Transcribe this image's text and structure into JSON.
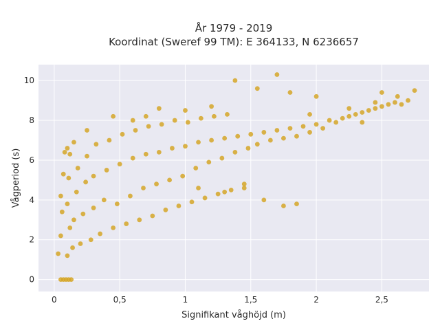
{
  "chart_data": {
    "type": "scatter",
    "title_line1": "År 1979 - 2019",
    "title_line2": "Koordinat (Sweref 99 TM): E 364133, N 6236657",
    "xlabel": "Signifikant våghöjd (m)",
    "ylabel": "Vågperiod (s)",
    "xlim": [
      -0.12,
      2.86
    ],
    "ylim": [
      -0.6,
      10.8
    ],
    "x_ticks": [
      0,
      0.5,
      1,
      1.5,
      2,
      2.5
    ],
    "x_tick_labels": [
      "0",
      "0,5",
      "1",
      "1,5",
      "2",
      "2,5"
    ],
    "y_ticks": [
      0,
      2,
      4,
      6,
      8,
      10
    ],
    "y_tick_labels": [
      "0",
      "2",
      "4",
      "6",
      "8",
      "10"
    ],
    "grid": true,
    "legend": "none",
    "colors": {
      "marker": "#d4a420",
      "plot_background": "#e9e9f2",
      "grid": "#ffffff"
    },
    "series": [
      {
        "points": [
          [
            0.05,
            0
          ],
          [
            0.07,
            0
          ],
          [
            0.09,
            0
          ],
          [
            0.11,
            0
          ],
          [
            0.13,
            0
          ],
          [
            0.03,
            1.3
          ],
          [
            0.05,
            2.2
          ],
          [
            0.06,
            3.4
          ],
          [
            0.05,
            4.2
          ],
          [
            0.07,
            5.3
          ],
          [
            0.08,
            6.4
          ],
          [
            0.1,
            1.2
          ],
          [
            0.12,
            2.6
          ],
          [
            0.1,
            3.8
          ],
          [
            0.11,
            5.1
          ],
          [
            0.12,
            6.3
          ],
          [
            0.14,
            1.6
          ],
          [
            0.15,
            3.0
          ],
          [
            0.17,
            4.4
          ],
          [
            0.18,
            5.6
          ],
          [
            0.2,
            1.8
          ],
          [
            0.22,
            3.3
          ],
          [
            0.24,
            4.9
          ],
          [
            0.25,
            6.2
          ],
          [
            0.28,
            2.0
          ],
          [
            0.3,
            3.6
          ],
          [
            0.3,
            5.2
          ],
          [
            0.32,
            6.8
          ],
          [
            0.35,
            2.3
          ],
          [
            0.38,
            4.0
          ],
          [
            0.4,
            5.5
          ],
          [
            0.42,
            7.0
          ],
          [
            0.45,
            2.6
          ],
          [
            0.48,
            3.8
          ],
          [
            0.5,
            5.8
          ],
          [
            0.52,
            7.3
          ],
          [
            0.55,
            2.8
          ],
          [
            0.58,
            4.2
          ],
          [
            0.6,
            6.1
          ],
          [
            0.62,
            7.5
          ],
          [
            0.65,
            3.0
          ],
          [
            0.68,
            4.6
          ],
          [
            0.7,
            6.3
          ],
          [
            0.72,
            7.7
          ],
          [
            0.75,
            3.2
          ],
          [
            0.78,
            4.8
          ],
          [
            0.8,
            6.4
          ],
          [
            0.82,
            7.8
          ],
          [
            0.85,
            3.5
          ],
          [
            0.88,
            5.0
          ],
          [
            0.9,
            6.6
          ],
          [
            0.92,
            8.0
          ],
          [
            0.95,
            3.7
          ],
          [
            0.98,
            5.2
          ],
          [
            1.0,
            6.7
          ],
          [
            1.02,
            7.9
          ],
          [
            1.05,
            3.9
          ],
          [
            1.08,
            5.6
          ],
          [
            1.1,
            6.9
          ],
          [
            1.12,
            8.1
          ],
          [
            1.15,
            4.1
          ],
          [
            1.18,
            5.9
          ],
          [
            1.2,
            7.0
          ],
          [
            1.22,
            8.2
          ],
          [
            1.25,
            4.3
          ],
          [
            1.28,
            6.1
          ],
          [
            1.3,
            7.1
          ],
          [
            1.32,
            8.3
          ],
          [
            1.35,
            4.5
          ],
          [
            1.38,
            6.4
          ],
          [
            1.4,
            7.2
          ],
          [
            1.45,
            4.6
          ],
          [
            1.48,
            6.6
          ],
          [
            1.5,
            7.3
          ],
          [
            1.55,
            6.8
          ],
          [
            1.6,
            7.4
          ],
          [
            1.65,
            7.0
          ],
          [
            1.7,
            7.5
          ],
          [
            1.75,
            7.1
          ],
          [
            1.8,
            7.6
          ],
          [
            1.85,
            7.2
          ],
          [
            1.9,
            7.7
          ],
          [
            1.95,
            7.4
          ],
          [
            2.0,
            7.8
          ],
          [
            2.05,
            7.6
          ],
          [
            2.1,
            8.0
          ],
          [
            2.15,
            7.9
          ],
          [
            2.2,
            8.1
          ],
          [
            2.25,
            8.2
          ],
          [
            2.3,
            8.3
          ],
          [
            2.35,
            8.4
          ],
          [
            2.4,
            8.5
          ],
          [
            2.45,
            8.6
          ],
          [
            2.5,
            8.7
          ],
          [
            2.55,
            8.8
          ],
          [
            2.6,
            8.9
          ],
          [
            2.65,
            8.8
          ],
          [
            2.7,
            9.0
          ],
          [
            2.75,
            9.5
          ],
          [
            2.5,
            9.4
          ],
          [
            2.62,
            9.2
          ],
          [
            1.38,
            10.0
          ],
          [
            1.7,
            10.3
          ],
          [
            1.55,
            9.6
          ],
          [
            1.8,
            9.4
          ],
          [
            2.0,
            9.2
          ],
          [
            0.45,
            8.2
          ],
          [
            0.25,
            7.5
          ],
          [
            0.8,
            8.6
          ],
          [
            1.0,
            8.5
          ],
          [
            1.2,
            8.7
          ],
          [
            1.6,
            4.0
          ],
          [
            1.75,
            3.7
          ],
          [
            1.85,
            3.8
          ],
          [
            1.45,
            4.8
          ],
          [
            1.3,
            4.4
          ],
          [
            1.1,
            4.6
          ],
          [
            0.6,
            8.0
          ],
          [
            0.7,
            8.2
          ],
          [
            0.1,
            6.6
          ],
          [
            0.15,
            6.9
          ],
          [
            2.25,
            8.6
          ],
          [
            2.45,
            8.9
          ],
          [
            2.35,
            7.9
          ],
          [
            1.95,
            8.3
          ]
        ]
      }
    ]
  }
}
